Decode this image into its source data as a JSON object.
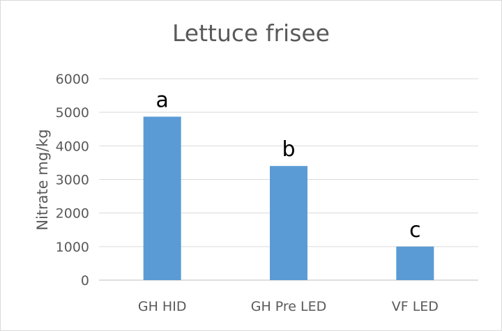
{
  "chart_data": {
    "type": "bar",
    "title": "Lettuce frisee",
    "xlabel": "",
    "ylabel": "Nitrate mg/kg",
    "categories": [
      "GH HID",
      "GH Pre LED",
      "VF LED"
    ],
    "values": [
      4870,
      3400,
      1000
    ],
    "data_labels": [
      "a",
      "b",
      "c"
    ],
    "ylim": [
      0,
      6000
    ],
    "yticks": [
      "0",
      "1000",
      "2000",
      "3000",
      "4000",
      "5000",
      "6000"
    ],
    "grid": true,
    "legend": "none",
    "bar_color": "#5b9bd5",
    "grid_color": "#d9d9d9"
  }
}
